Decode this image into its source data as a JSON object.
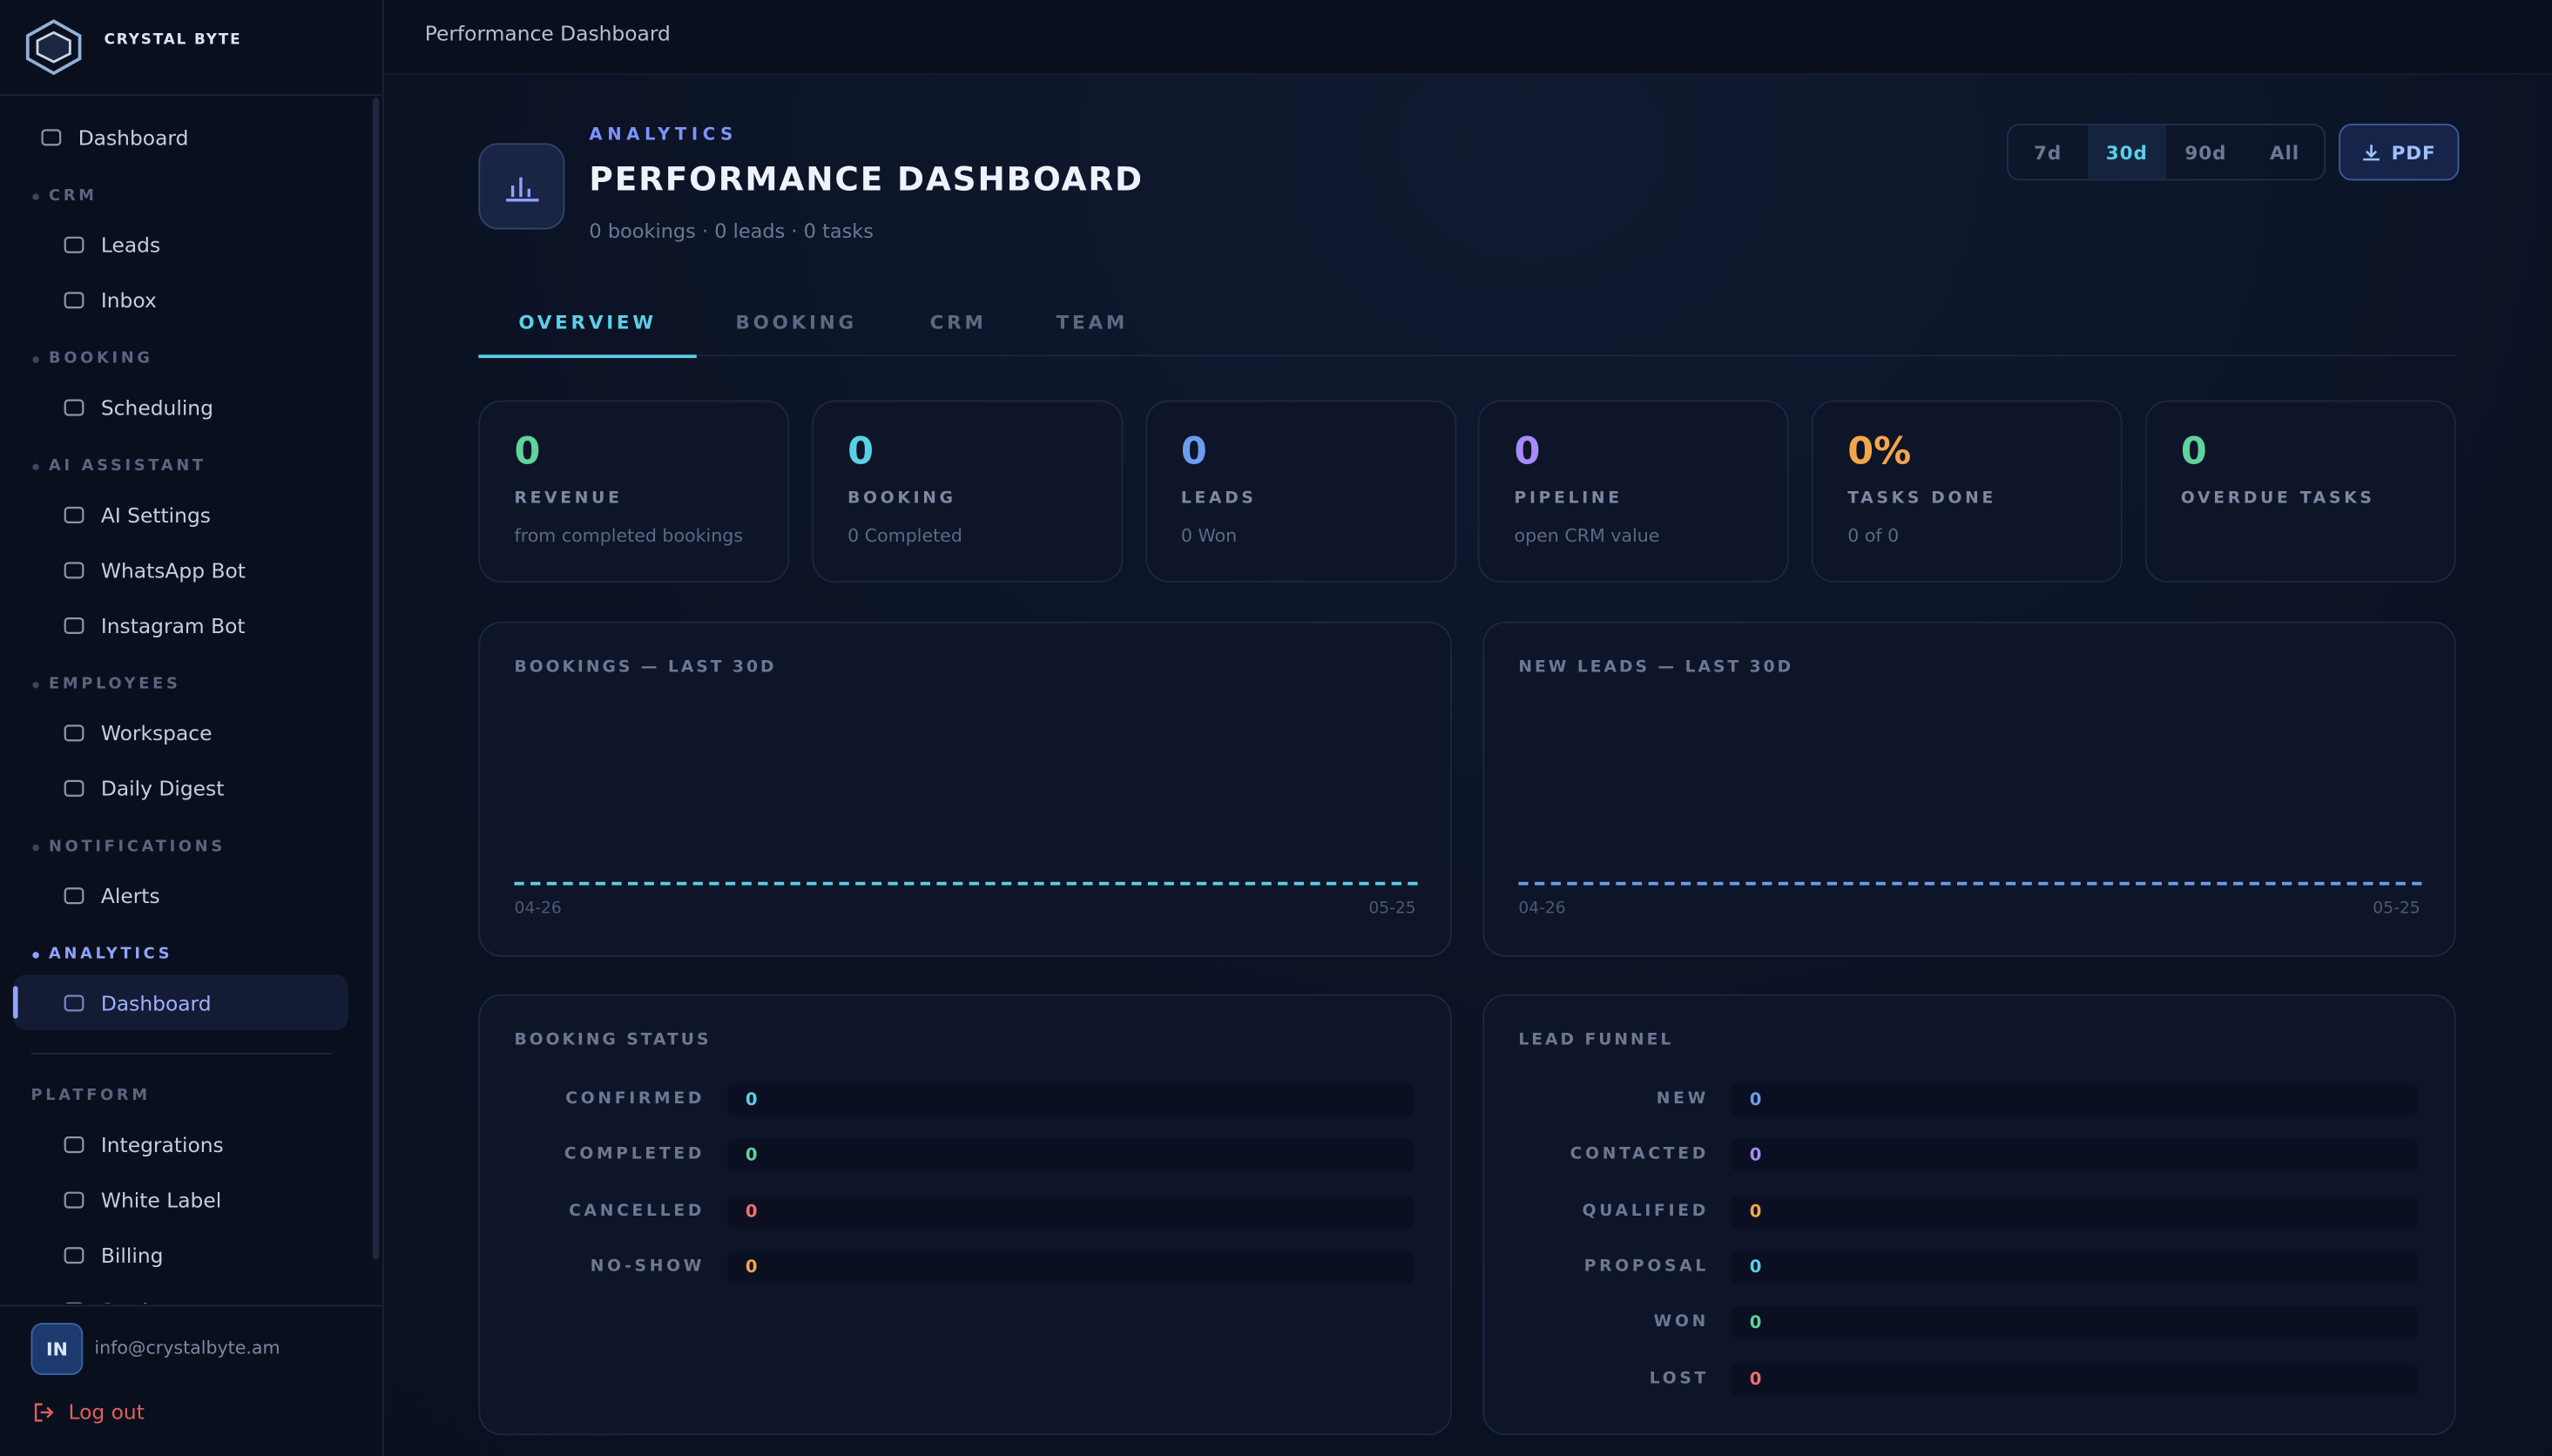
{
  "sidebar": {
    "brand": "CRYSTAL BYTE",
    "nav": [
      {
        "items": [
          "Dashboard"
        ]
      },
      {
        "title": "CRM",
        "items": [
          "Leads",
          "Inbox"
        ]
      },
      {
        "title": "BOOKING",
        "items": [
          "Scheduling"
        ]
      },
      {
        "title": "AI ASSISTANT",
        "items": [
          "AI Settings",
          "WhatsApp Bot",
          "Instagram Bot"
        ]
      },
      {
        "title": "EMPLOYEES",
        "items": [
          "Workspace",
          "Daily Digest"
        ]
      },
      {
        "title": "NOTIFICATIONS",
        "items": [
          "Alerts"
        ]
      },
      {
        "title": "ANALYTICS",
        "items": [
          "Dashboard"
        ],
        "active": true
      },
      {
        "title": "PLATFORM",
        "items": [
          "Integrations",
          "White Label",
          "Billing",
          "Settings"
        ],
        "divider": true
      }
    ],
    "user": {
      "initials": "IN",
      "email": "info@crystalbyte.am"
    },
    "logout": "Log out"
  },
  "topbar": {
    "title": "Performance Dashboard"
  },
  "header": {
    "eyebrow": "ANALYTICS",
    "title": "PERFORMANCE DASHBOARD",
    "subtitle": "0 bookings · 0 leads · 0 tasks",
    "ranges": [
      "7d",
      "30d",
      "90d",
      "All"
    ],
    "active_range": "30d",
    "export": "PDF"
  },
  "tabs": {
    "items": [
      "OVERVIEW",
      "BOOKING",
      "CRM",
      "TEAM"
    ],
    "active": "OVERVIEW"
  },
  "kpis": [
    {
      "value": "0",
      "label": "REVENUE",
      "sub": "from completed bookings",
      "color": "#5fd39a"
    },
    {
      "value": "0",
      "label": "BOOKING",
      "sub": "0 Completed",
      "color": "#5ad0e6"
    },
    {
      "value": "0",
      "label": "LEADS",
      "sub": "0 Won",
      "color": "#6b9cf0"
    },
    {
      "value": "0",
      "label": "PIPELINE",
      "sub": "open CRM value",
      "color": "#a78bfa"
    },
    {
      "value": "0%",
      "label": "TASKS DONE",
      "sub": "0 of 0",
      "color": "#f5a54a"
    },
    {
      "value": "0",
      "label": "OVERDUE TASKS",
      "color": "#5fd39a"
    }
  ],
  "trends": [
    {
      "title": "BOOKINGS — LAST 30D",
      "start": "04-26",
      "end": "05-25",
      "color": "#5ad0e6"
    },
    {
      "title": "NEW LEADS — LAST 30D",
      "start": "04-26",
      "end": "05-25",
      "color": "#6b9cf0"
    }
  ],
  "breakdowns": [
    {
      "title": "BOOKING STATUS",
      "rows": [
        {
          "label": "CONFIRMED",
          "value": "0",
          "color": "#5ad0e6"
        },
        {
          "label": "COMPLETED",
          "value": "0",
          "color": "#5fd39a"
        },
        {
          "label": "CANCELLED",
          "value": "0",
          "color": "#f2706a"
        },
        {
          "label": "NO-SHOW",
          "value": "0",
          "color": "#f5a54a"
        }
      ]
    },
    {
      "title": "LEAD FUNNEL",
      "rows": [
        {
          "label": "NEW",
          "value": "0",
          "color": "#6b9cf0"
        },
        {
          "label": "CONTACTED",
          "value": "0",
          "color": "#a78bfa"
        },
        {
          "label": "QUALIFIED",
          "value": "0",
          "color": "#f5a54a"
        },
        {
          "label": "PROPOSAL",
          "value": "0",
          "color": "#5ad0e6"
        },
        {
          "label": "WON",
          "value": "0",
          "color": "#5fd39a"
        },
        {
          "label": "LOST",
          "value": "0",
          "color": "#f2706a"
        }
      ]
    }
  ]
}
